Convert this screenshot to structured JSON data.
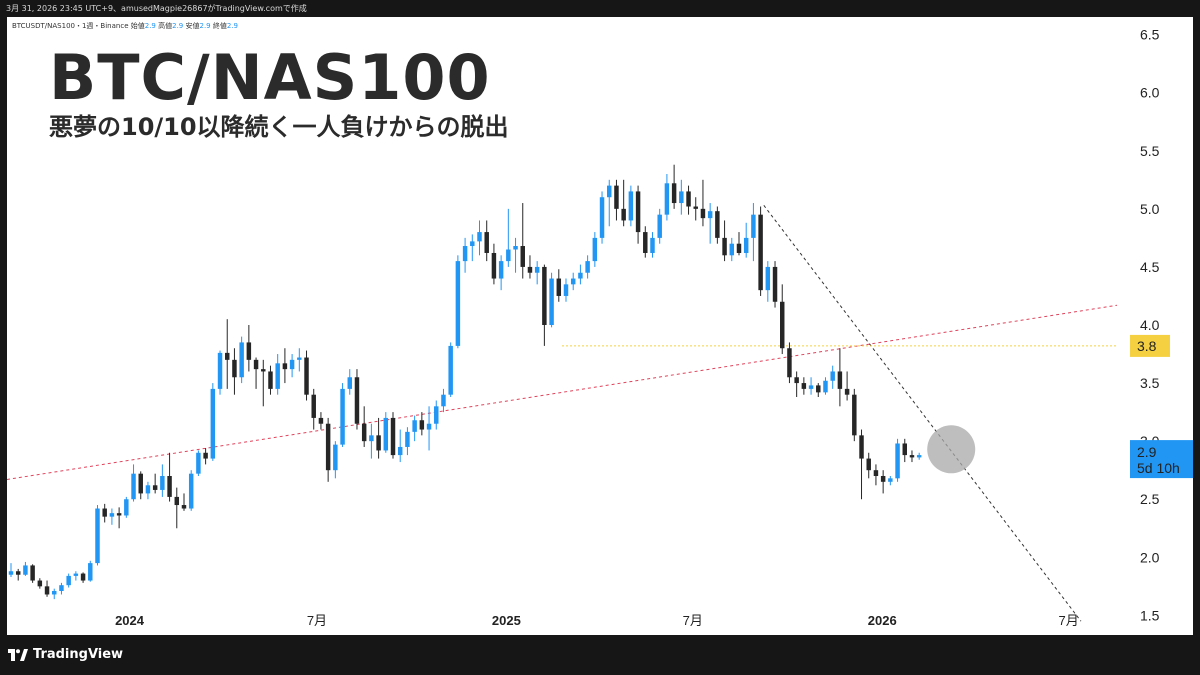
{
  "top_bar": {
    "text": "3月 31, 2026 23:45 UTC+9、amusedMagpie26867がTradingView.comで作成"
  },
  "symbol_line": {
    "symbol": "BTCUSDT/NAS100・1週・Binance",
    "open_label": "始値",
    "open": "2.9",
    "high_label": "高値",
    "high": "2.9",
    "low_label": "安値",
    "low": "2.9",
    "close_label": "終値",
    "close": "2.9"
  },
  "title": "BTC/NAS100",
  "subtitle": "悪夢の10/10以降続く一人負けからの脱出",
  "footer": {
    "brand": "TradingView"
  },
  "colors": {
    "up": "#2196f3",
    "down": "#262626",
    "resistance_line": "#e0435b",
    "level_line": "#f5d142",
    "trend_line": "#333333",
    "highlight": "#a8a8a8"
  },
  "chart_data": {
    "type": "candlestick",
    "timeframe": "1週",
    "ylim": [
      1.4,
      6.6
    ],
    "y_ticks": [
      "1.5",
      "2.0",
      "2.5",
      "3.0",
      "3.5",
      "4.0",
      "4.5",
      "5.0",
      "5.5",
      "6.0",
      "6.5"
    ],
    "x_labels": [
      {
        "label": "2024",
        "date": "2024-01-01",
        "bold": true
      },
      {
        "label": "7月",
        "date": "2024-07-01",
        "bold": false
      },
      {
        "label": "2025",
        "date": "2025-01-01",
        "bold": true
      },
      {
        "label": "7月",
        "date": "2025-07-01",
        "bold": false
      },
      {
        "label": "2026",
        "date": "2026-01-01",
        "bold": true
      },
      {
        "label": "7月",
        "date": "2026-07-01",
        "bold": false
      }
    ],
    "x_range": [
      "2023-09-04",
      "2026-08-17"
    ],
    "weeks_start": "2023-09-04",
    "candles": [
      [
        1.85,
        1.95,
        1.83,
        1.88
      ],
      [
        1.88,
        1.9,
        1.8,
        1.85
      ],
      [
        1.85,
        1.96,
        1.84,
        1.93
      ],
      [
        1.93,
        1.94,
        1.78,
        1.8
      ],
      [
        1.8,
        1.82,
        1.73,
        1.75
      ],
      [
        1.75,
        1.8,
        1.66,
        1.68
      ],
      [
        1.68,
        1.73,
        1.64,
        1.71
      ],
      [
        1.71,
        1.78,
        1.68,
        1.76
      ],
      [
        1.76,
        1.86,
        1.74,
        1.84
      ],
      [
        1.84,
        1.88,
        1.8,
        1.86
      ],
      [
        1.86,
        1.87,
        1.78,
        1.8
      ],
      [
        1.8,
        1.97,
        1.79,
        1.95
      ],
      [
        1.95,
        2.45,
        1.93,
        2.42
      ],
      [
        2.42,
        2.46,
        2.3,
        2.35
      ],
      [
        2.35,
        2.42,
        2.28,
        2.38
      ],
      [
        2.38,
        2.43,
        2.25,
        2.36
      ],
      [
        2.36,
        2.52,
        2.34,
        2.5
      ],
      [
        2.5,
        2.8,
        2.48,
        2.72
      ],
      [
        2.72,
        2.74,
        2.5,
        2.55
      ],
      [
        2.55,
        2.65,
        2.5,
        2.62
      ],
      [
        2.62,
        2.72,
        2.55,
        2.58
      ],
      [
        2.58,
        2.8,
        2.52,
        2.7
      ],
      [
        2.7,
        2.9,
        2.48,
        2.52
      ],
      [
        2.52,
        2.6,
        2.25,
        2.45
      ],
      [
        2.45,
        2.55,
        2.4,
        2.42
      ],
      [
        2.42,
        2.75,
        2.4,
        2.72
      ],
      [
        2.72,
        2.92,
        2.7,
        2.9
      ],
      [
        2.9,
        2.94,
        2.8,
        2.85
      ],
      [
        2.85,
        3.5,
        2.83,
        3.45
      ],
      [
        3.45,
        3.78,
        3.4,
        3.76
      ],
      [
        3.76,
        4.05,
        3.45,
        3.7
      ],
      [
        3.7,
        3.8,
        3.4,
        3.55
      ],
      [
        3.55,
        3.9,
        3.5,
        3.85
      ],
      [
        3.85,
        4.0,
        3.6,
        3.7
      ],
      [
        3.7,
        3.72,
        3.45,
        3.62
      ],
      [
        3.62,
        3.7,
        3.3,
        3.6
      ],
      [
        3.6,
        3.65,
        3.4,
        3.45
      ],
      [
        3.45,
        3.75,
        3.4,
        3.67
      ],
      [
        3.67,
        3.8,
        3.5,
        3.62
      ],
      [
        3.62,
        3.75,
        3.55,
        3.7
      ],
      [
        3.7,
        3.8,
        3.6,
        3.72
      ],
      [
        3.72,
        3.78,
        3.35,
        3.4
      ],
      [
        3.4,
        3.45,
        3.1,
        3.2
      ],
      [
        3.2,
        3.25,
        3.1,
        3.15
      ],
      [
        3.15,
        3.2,
        2.65,
        2.75
      ],
      [
        2.75,
        3.0,
        2.68,
        2.97
      ],
      [
        2.97,
        3.5,
        2.95,
        3.45
      ],
      [
        3.45,
        3.62,
        3.4,
        3.55
      ],
      [
        3.55,
        3.62,
        3.1,
        3.15
      ],
      [
        3.15,
        3.3,
        2.95,
        3.0
      ],
      [
        3.0,
        3.15,
        2.85,
        3.05
      ],
      [
        3.05,
        3.2,
        2.85,
        2.92
      ],
      [
        2.92,
        3.25,
        2.9,
        3.2
      ],
      [
        3.2,
        3.25,
        2.85,
        2.88
      ],
      [
        2.88,
        3.1,
        2.82,
        2.95
      ],
      [
        2.95,
        3.12,
        2.88,
        3.08
      ],
      [
        3.08,
        3.22,
        3.0,
        3.18
      ],
      [
        3.18,
        3.25,
        3.05,
        3.1
      ],
      [
        3.1,
        3.3,
        2.92,
        3.15
      ],
      [
        3.15,
        3.35,
        3.1,
        3.3
      ],
      [
        3.3,
        3.45,
        3.25,
        3.4
      ],
      [
        3.4,
        3.85,
        3.38,
        3.82
      ],
      [
        3.82,
        4.6,
        3.8,
        4.55
      ],
      [
        4.55,
        4.75,
        4.45,
        4.68
      ],
      [
        4.68,
        4.78,
        4.55,
        4.72
      ],
      [
        4.72,
        4.9,
        4.6,
        4.8
      ],
      [
        4.8,
        4.9,
        4.55,
        4.62
      ],
      [
        4.62,
        4.7,
        4.35,
        4.4
      ],
      [
        4.4,
        4.6,
        4.3,
        4.55
      ],
      [
        4.55,
        5.0,
        4.5,
        4.65
      ],
      [
        4.65,
        4.75,
        4.45,
        4.68
      ],
      [
        4.68,
        5.05,
        4.4,
        4.5
      ],
      [
        4.5,
        4.6,
        4.4,
        4.45
      ],
      [
        4.45,
        4.55,
        4.35,
        4.5
      ],
      [
        4.5,
        4.52,
        3.82,
        4.0
      ],
      [
        4.0,
        4.45,
        3.98,
        4.4
      ],
      [
        4.4,
        4.48,
        4.2,
        4.25
      ],
      [
        4.25,
        4.4,
        4.2,
        4.35
      ],
      [
        4.35,
        4.45,
        4.3,
        4.4
      ],
      [
        4.4,
        4.52,
        4.35,
        4.45
      ],
      [
        4.45,
        4.6,
        4.4,
        4.55
      ],
      [
        4.55,
        4.8,
        4.5,
        4.75
      ],
      [
        4.75,
        5.15,
        4.7,
        5.1
      ],
      [
        5.1,
        5.25,
        4.85,
        5.2
      ],
      [
        5.2,
        5.25,
        4.9,
        5.0
      ],
      [
        5.0,
        5.25,
        4.85,
        4.9
      ],
      [
        4.9,
        5.2,
        4.85,
        5.15
      ],
      [
        5.15,
        5.2,
        4.7,
        4.8
      ],
      [
        4.8,
        4.85,
        4.58,
        4.62
      ],
      [
        4.62,
        4.8,
        4.58,
        4.75
      ],
      [
        4.75,
        5.0,
        4.7,
        4.95
      ],
      [
        4.95,
        5.3,
        4.9,
        5.22
      ],
      [
        5.22,
        5.38,
        5.0,
        5.05
      ],
      [
        5.05,
        5.25,
        4.95,
        5.15
      ],
      [
        5.15,
        5.2,
        4.95,
        5.02
      ],
      [
        5.02,
        5.1,
        4.9,
        5.0
      ],
      [
        5.0,
        5.25,
        4.85,
        4.92
      ],
      [
        4.92,
        5.05,
        4.7,
        4.98
      ],
      [
        4.98,
        5.02,
        4.7,
        4.75
      ],
      [
        4.75,
        4.9,
        4.55,
        4.6
      ],
      [
        4.6,
        4.75,
        4.55,
        4.7
      ],
      [
        4.7,
        4.8,
        4.6,
        4.62
      ],
      [
        4.62,
        4.88,
        4.58,
        4.75
      ],
      [
        4.75,
        5.05,
        4.55,
        4.95
      ],
      [
        4.95,
        5.02,
        4.25,
        4.3
      ],
      [
        4.3,
        4.55,
        4.2,
        4.5
      ],
      [
        4.5,
        4.55,
        4.15,
        4.2
      ],
      [
        4.2,
        4.35,
        3.75,
        3.8
      ],
      [
        3.8,
        3.85,
        3.5,
        3.55
      ],
      [
        3.55,
        3.6,
        3.38,
        3.5
      ],
      [
        3.5,
        3.55,
        3.4,
        3.45
      ],
      [
        3.45,
        3.55,
        3.4,
        3.48
      ],
      [
        3.48,
        3.5,
        3.38,
        3.42
      ],
      [
        3.42,
        3.55,
        3.4,
        3.52
      ],
      [
        3.52,
        3.65,
        3.45,
        3.6
      ],
      [
        3.6,
        3.8,
        3.3,
        3.45
      ],
      [
        3.45,
        3.6,
        3.35,
        3.4
      ],
      [
        3.4,
        3.45,
        3.0,
        3.05
      ],
      [
        3.05,
        3.1,
        2.5,
        2.85
      ],
      [
        2.85,
        2.9,
        2.68,
        2.75
      ],
      [
        2.75,
        2.8,
        2.62,
        2.7
      ],
      [
        2.7,
        2.75,
        2.55,
        2.65
      ],
      [
        2.65,
        2.7,
        2.62,
        2.68
      ],
      [
        2.68,
        3.02,
        2.65,
        2.98
      ],
      [
        2.98,
        3.02,
        2.82,
        2.88
      ],
      [
        2.88,
        2.92,
        2.82,
        2.86
      ],
      [
        2.86,
        2.9,
        2.84,
        2.88
      ]
    ],
    "lines": [
      {
        "name": "red-support-line",
        "kind": "dashed",
        "from": [
          "2023-09-04",
          2.67
        ],
        "to": [
          "2026-08-17",
          4.17
        ]
      },
      {
        "name": "downtrend-line",
        "kind": "dashed",
        "from": [
          "2025-09-08",
          5.03
        ],
        "to": [
          "2026-07-13",
          1.45
        ]
      },
      {
        "name": "yellow-level",
        "kind": "dotted",
        "from": [
          "2025-02-24",
          3.82
        ],
        "to": [
          "2026-08-17",
          3.82
        ]
      }
    ],
    "highlight_circle": {
      "date": "2026-03-09",
      "value": 2.93
    },
    "price_tags": [
      {
        "value": 3.82,
        "label": "3.8",
        "style": "yellow"
      },
      {
        "value": 2.88,
        "label": "2.9",
        "sublabel": "5d 10h",
        "style": "blue"
      }
    ]
  }
}
